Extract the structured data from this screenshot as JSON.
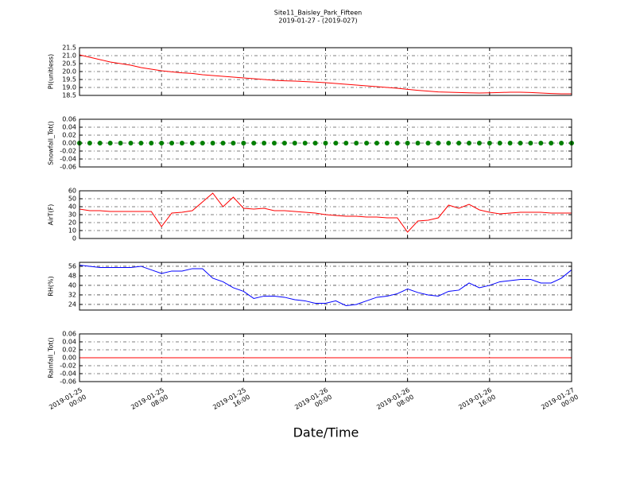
{
  "title": "Site11_Baisley_Park_Fifteen",
  "subtitle": "2019-01-27 - (2019-027)",
  "xlabel": "Date/Time",
  "chart_data": [
    {
      "type": "line",
      "ylabel": "PI(unitless)",
      "color": "#ff0000",
      "xlim": [
        "2019-01-25 00:00",
        "2019-01-27 00:00"
      ],
      "ylim": [
        18.5,
        21.5
      ],
      "yticks": [
        18.5,
        {
          "value": 19,
          "label": "19.0"
        },
        19.5,
        {
          "value": 20,
          "label": "20.0"
        },
        20.5,
        {
          "value": 21,
          "label": "21.0"
        },
        21.5
      ],
      "grid": true,
      "x": [
        "2019-01-25 00:00",
        "2019-01-25 01:00",
        "2019-01-25 02:00",
        "2019-01-25 03:00",
        "2019-01-25 04:00",
        "2019-01-25 05:00",
        "2019-01-25 06:00",
        "2019-01-25 07:00",
        "2019-01-25 08:00",
        "2019-01-25 09:00",
        "2019-01-25 10:00",
        "2019-01-25 11:00",
        "2019-01-25 12:00",
        "2019-01-25 13:00",
        "2019-01-25 14:00",
        "2019-01-25 15:00",
        "2019-01-25 16:00",
        "2019-01-25 17:00",
        "2019-01-25 18:00",
        "2019-01-25 19:00",
        "2019-01-25 20:00",
        "2019-01-25 21:00",
        "2019-01-25 22:00",
        "2019-01-25 23:00",
        "2019-01-26 00:00",
        "2019-01-26 01:00",
        "2019-01-26 02:00",
        "2019-01-26 03:00",
        "2019-01-26 04:00",
        "2019-01-26 05:00",
        "2019-01-26 06:00",
        "2019-01-26 07:00",
        "2019-01-26 08:00",
        "2019-01-26 09:00",
        "2019-01-26 10:00",
        "2019-01-26 11:00",
        "2019-01-26 12:00",
        "2019-01-26 13:00",
        "2019-01-26 14:00",
        "2019-01-26 15:00",
        "2019-01-26 16:00",
        "2019-01-26 17:00",
        "2019-01-26 18:00",
        "2019-01-26 19:00",
        "2019-01-26 20:00",
        "2019-01-26 21:00",
        "2019-01-26 22:00",
        "2019-01-26 23:00",
        "2019-01-27 00:00"
      ],
      "values": [
        21.05,
        20.9,
        20.75,
        20.6,
        20.5,
        20.4,
        20.25,
        20.15,
        20.05,
        19.98,
        19.92,
        19.88,
        19.8,
        19.75,
        19.7,
        19.65,
        19.6,
        19.55,
        19.5,
        19.45,
        19.42,
        19.4,
        19.37,
        19.34,
        19.3,
        19.25,
        19.2,
        19.15,
        19.1,
        19.05,
        19.0,
        18.95,
        18.88,
        18.82,
        18.77,
        18.72,
        18.7,
        18.68,
        18.66,
        18.65,
        18.66,
        18.68,
        18.7,
        18.7,
        18.68,
        18.65,
        18.62,
        18.6,
        18.6
      ]
    },
    {
      "type": "scatter",
      "ylabel": "Snowfall_Tot()",
      "color": "#007f00",
      "xlim": [
        "2019-01-25 00:00",
        "2019-01-27 00:00"
      ],
      "ylim": [
        -0.06,
        0.06
      ],
      "yticks": [
        -0.06,
        -0.04,
        -0.02,
        {
          "value": 0,
          "label": "0.00"
        },
        0.02,
        0.04,
        0.06
      ],
      "grid": true,
      "x": [
        "2019-01-25 00:00",
        "2019-01-25 01:00",
        "2019-01-25 02:00",
        "2019-01-25 03:00",
        "2019-01-25 04:00",
        "2019-01-25 05:00",
        "2019-01-25 06:00",
        "2019-01-25 07:00",
        "2019-01-25 08:00",
        "2019-01-25 09:00",
        "2019-01-25 10:00",
        "2019-01-25 11:00",
        "2019-01-25 12:00",
        "2019-01-25 13:00",
        "2019-01-25 14:00",
        "2019-01-25 15:00",
        "2019-01-25 16:00",
        "2019-01-25 17:00",
        "2019-01-25 18:00",
        "2019-01-25 19:00",
        "2019-01-25 20:00",
        "2019-01-25 21:00",
        "2019-01-25 22:00",
        "2019-01-25 23:00",
        "2019-01-26 00:00",
        "2019-01-26 01:00",
        "2019-01-26 02:00",
        "2019-01-26 03:00",
        "2019-01-26 04:00",
        "2019-01-26 05:00",
        "2019-01-26 06:00",
        "2019-01-26 07:00",
        "2019-01-26 08:00",
        "2019-01-26 09:00",
        "2019-01-26 10:00",
        "2019-01-26 11:00",
        "2019-01-26 12:00",
        "2019-01-26 13:00",
        "2019-01-26 14:00",
        "2019-01-26 15:00",
        "2019-01-26 16:00",
        "2019-01-26 17:00",
        "2019-01-26 18:00",
        "2019-01-26 19:00",
        "2019-01-26 20:00",
        "2019-01-26 21:00",
        "2019-01-26 22:00",
        "2019-01-26 23:00",
        "2019-01-27 00:00"
      ],
      "values": [
        0,
        0,
        0,
        0,
        0,
        0,
        0,
        0,
        0,
        0,
        0,
        0,
        0,
        0,
        0,
        0,
        0,
        0,
        0,
        0,
        0,
        0,
        0,
        0,
        0,
        0,
        0,
        0,
        0,
        0,
        0,
        0,
        0,
        0,
        0,
        0,
        0,
        0,
        0,
        0,
        0,
        0,
        0,
        0,
        0,
        0,
        0,
        0,
        0
      ]
    },
    {
      "type": "line",
      "ylabel": "AirT(F)",
      "color": "#ff0000",
      "xlim": [
        "2019-01-25 00:00",
        "2019-01-27 00:00"
      ],
      "ylim": [
        0,
        60
      ],
      "yticks": [
        0,
        10,
        20,
        30,
        40,
        50,
        60
      ],
      "grid": true,
      "x": [
        "2019-01-25 00:00",
        "2019-01-25 01:00",
        "2019-01-25 02:00",
        "2019-01-25 03:00",
        "2019-01-25 04:00",
        "2019-01-25 05:00",
        "2019-01-25 06:00",
        "2019-01-25 07:00",
        "2019-01-25 08:00",
        "2019-01-25 09:00",
        "2019-01-25 10:00",
        "2019-01-25 11:00",
        "2019-01-25 12:00",
        "2019-01-25 13:00",
        "2019-01-25 14:00",
        "2019-01-25 15:00",
        "2019-01-25 16:00",
        "2019-01-25 17:00",
        "2019-01-25 18:00",
        "2019-01-25 19:00",
        "2019-01-25 20:00",
        "2019-01-25 21:00",
        "2019-01-25 22:00",
        "2019-01-25 23:00",
        "2019-01-26 00:00",
        "2019-01-26 01:00",
        "2019-01-26 02:00",
        "2019-01-26 03:00",
        "2019-01-26 04:00",
        "2019-01-26 05:00",
        "2019-01-26 06:00",
        "2019-01-26 07:00",
        "2019-01-26 08:00",
        "2019-01-26 09:00",
        "2019-01-26 10:00",
        "2019-01-26 11:00",
        "2019-01-26 12:00",
        "2019-01-26 13:00",
        "2019-01-26 14:00",
        "2019-01-26 15:00",
        "2019-01-26 16:00",
        "2019-01-26 17:00",
        "2019-01-26 18:00",
        "2019-01-26 19:00",
        "2019-01-26 20:00",
        "2019-01-26 21:00",
        "2019-01-26 22:00",
        "2019-01-26 23:00",
        "2019-01-27 00:00"
      ],
      "values": [
        37,
        35,
        35,
        34,
        34,
        34,
        34,
        34,
        15,
        32,
        33,
        35,
        46,
        57,
        40,
        52,
        38,
        37,
        38,
        35,
        35,
        34,
        33,
        32,
        30,
        29,
        28,
        28,
        27,
        27,
        26,
        26,
        8,
        22,
        23,
        26,
        42,
        38,
        43,
        36,
        33,
        31,
        32,
        33,
        33,
        33,
        32,
        32,
        32
      ]
    },
    {
      "type": "line",
      "ylabel": "RH(%)",
      "color": "#0000ff",
      "xlim": [
        "2019-01-25 00:00",
        "2019-01-27 00:00"
      ],
      "ylim": [
        19.3,
        59.3
      ],
      "yticks": [
        24,
        32,
        40,
        48,
        56
      ],
      "grid": true,
      "x": [
        "2019-01-25 00:00",
        "2019-01-25 01:00",
        "2019-01-25 02:00",
        "2019-01-25 03:00",
        "2019-01-25 04:00",
        "2019-01-25 05:00",
        "2019-01-25 06:00",
        "2019-01-25 07:00",
        "2019-01-25 08:00",
        "2019-01-25 09:00",
        "2019-01-25 10:00",
        "2019-01-25 11:00",
        "2019-01-25 12:00",
        "2019-01-25 13:00",
        "2019-01-25 14:00",
        "2019-01-25 15:00",
        "2019-01-25 16:00",
        "2019-01-25 17:00",
        "2019-01-25 18:00",
        "2019-01-25 19:00",
        "2019-01-25 20:00",
        "2019-01-25 21:00",
        "2019-01-25 22:00",
        "2019-01-25 23:00",
        "2019-01-26 00:00",
        "2019-01-26 01:00",
        "2019-01-26 02:00",
        "2019-01-26 03:00",
        "2019-01-26 04:00",
        "2019-01-26 05:00",
        "2019-01-26 06:00",
        "2019-01-26 07:00",
        "2019-01-26 08:00",
        "2019-01-26 09:00",
        "2019-01-26 10:00",
        "2019-01-26 11:00",
        "2019-01-26 12:00",
        "2019-01-26 13:00",
        "2019-01-26 14:00",
        "2019-01-26 15:00",
        "2019-01-26 16:00",
        "2019-01-26 17:00",
        "2019-01-26 18:00",
        "2019-01-26 19:00",
        "2019-01-26 20:00",
        "2019-01-26 21:00",
        "2019-01-26 22:00",
        "2019-01-26 23:00",
        "2019-01-27 00:00"
      ],
      "values": [
        57,
        56,
        55,
        55,
        55,
        55,
        56,
        53,
        50,
        52,
        52,
        54,
        54,
        46,
        43,
        38,
        35,
        29,
        31,
        31,
        30,
        28,
        27,
        25,
        25,
        27,
        23,
        24,
        27,
        30,
        31,
        33,
        37,
        34,
        32,
        31,
        35,
        36,
        42,
        38,
        40,
        43,
        44,
        45,
        45,
        42,
        42,
        46,
        53
      ]
    },
    {
      "type": "line",
      "ylabel": "Rainfall_Tot()",
      "color": "#ff0000",
      "xlim": [
        "2019-01-25 00:00",
        "2019-01-27 00:00"
      ],
      "ylim": [
        -0.06,
        0.06
      ],
      "yticks": [
        -0.06,
        -0.04,
        -0.02,
        {
          "value": 0,
          "label": "0.00"
        },
        0.02,
        0.04,
        0.06
      ],
      "grid": true,
      "xticks": [
        {
          "value": "2019-01-25 00:00",
          "label": "2019-01-25\n00:00"
        },
        {
          "value": "2019-01-25 08:00",
          "label": "2019-01-25\n08:00"
        },
        {
          "value": "2019-01-25 16:00",
          "label": "2019-01-25\n16:00"
        },
        {
          "value": "2019-01-26 00:00",
          "label": "2019-01-26\n00:00"
        },
        {
          "value": "2019-01-26 08:00",
          "label": "2019-01-26\n08:00"
        },
        {
          "value": "2019-01-26 16:00",
          "label": "2019-01-26\n16:00"
        },
        {
          "value": "2019-01-27 00:00",
          "label": "2019-01-27\n00:00"
        }
      ],
      "x": [
        "2019-01-25 00:00",
        "2019-01-25 01:00",
        "2019-01-25 02:00",
        "2019-01-25 03:00",
        "2019-01-25 04:00",
        "2019-01-25 05:00",
        "2019-01-25 06:00",
        "2019-01-25 07:00",
        "2019-01-25 08:00",
        "2019-01-25 09:00",
        "2019-01-25 10:00",
        "2019-01-25 11:00",
        "2019-01-25 12:00",
        "2019-01-25 13:00",
        "2019-01-25 14:00",
        "2019-01-25 15:00",
        "2019-01-25 16:00",
        "2019-01-25 17:00",
        "2019-01-25 18:00",
        "2019-01-25 19:00",
        "2019-01-25 20:00",
        "2019-01-25 21:00",
        "2019-01-25 22:00",
        "2019-01-25 23:00",
        "2019-01-26 00:00",
        "2019-01-26 01:00",
        "2019-01-26 02:00",
        "2019-01-26 03:00",
        "2019-01-26 04:00",
        "2019-01-26 05:00",
        "2019-01-26 06:00",
        "2019-01-26 07:00",
        "2019-01-26 08:00",
        "2019-01-26 09:00",
        "2019-01-26 10:00",
        "2019-01-26 11:00",
        "2019-01-26 12:00",
        "2019-01-26 13:00",
        "2019-01-26 14:00",
        "2019-01-26 15:00",
        "2019-01-26 16:00",
        "2019-01-26 17:00",
        "2019-01-26 18:00",
        "2019-01-26 19:00",
        "2019-01-26 20:00",
        "2019-01-26 21:00",
        "2019-01-26 22:00",
        "2019-01-26 23:00",
        "2019-01-27 00:00"
      ],
      "values": [
        0,
        0,
        0,
        0,
        0,
        0,
        0,
        0,
        0,
        0,
        0,
        0,
        0,
        0,
        0,
        0,
        0,
        0,
        0,
        0,
        0,
        0,
        0,
        0,
        0,
        0,
        0,
        0,
        0,
        0,
        0,
        0,
        0,
        0,
        0,
        0,
        0,
        0,
        0,
        0,
        0,
        0,
        0,
        0,
        0,
        0,
        0,
        0,
        0
      ]
    }
  ]
}
